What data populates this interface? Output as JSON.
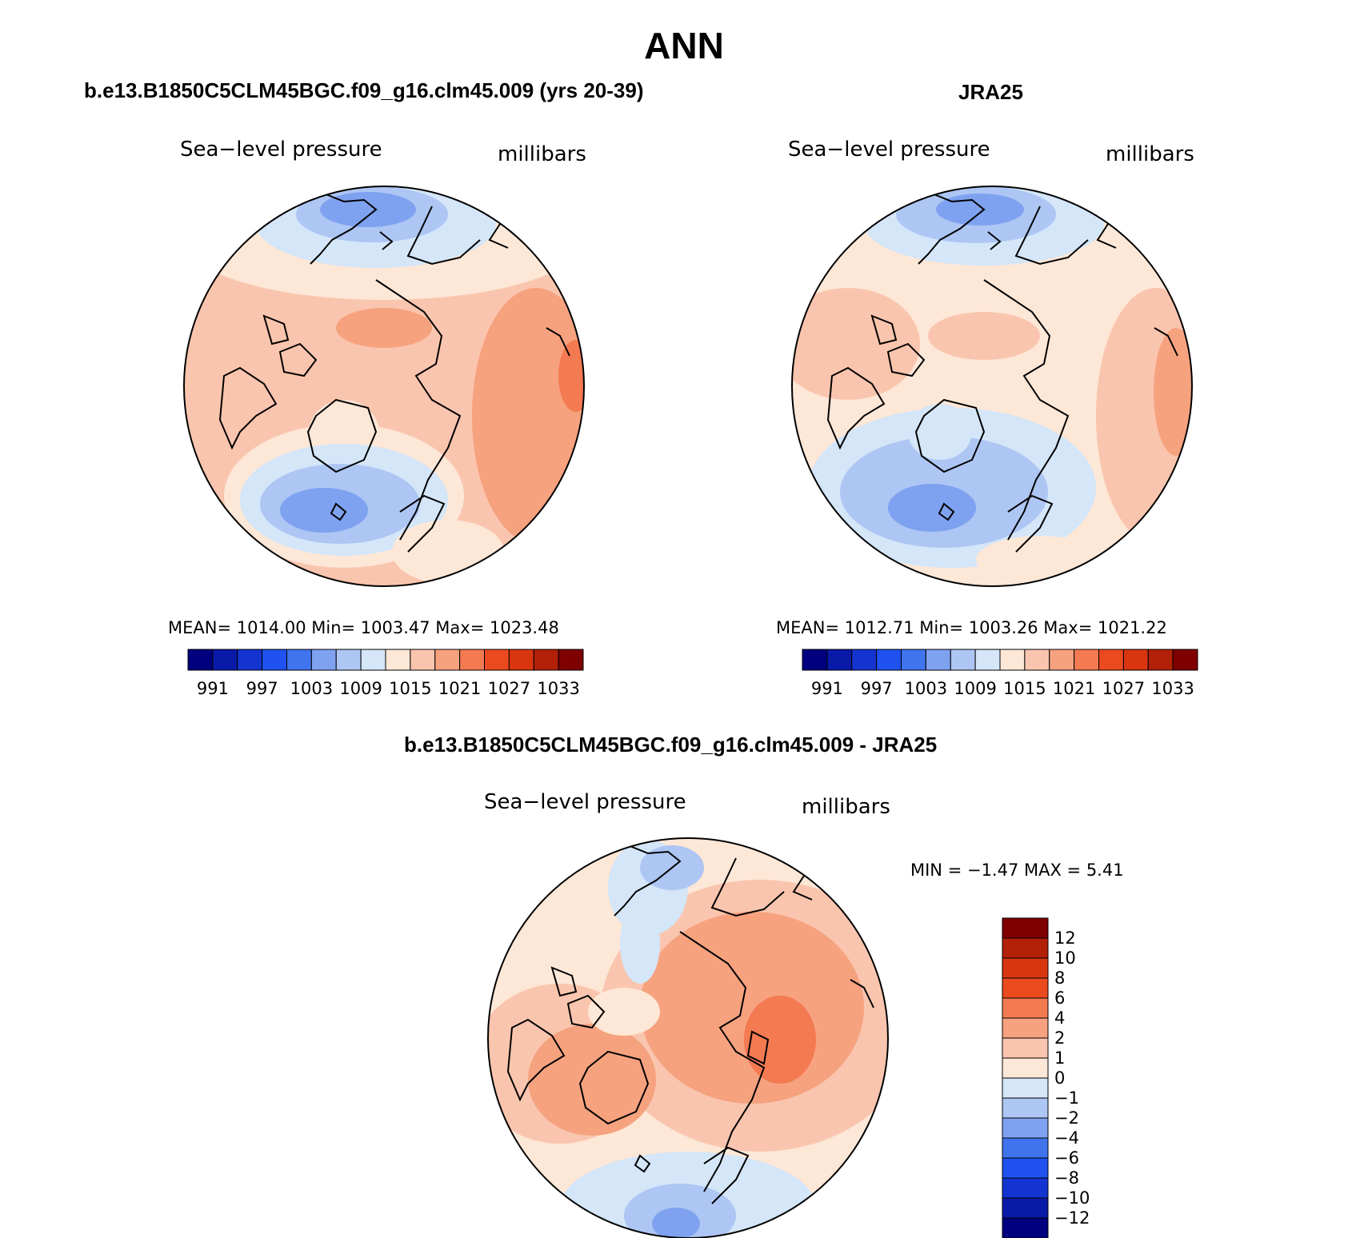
{
  "figure": {
    "title": "ANN",
    "panel_left_title": "b.e13.B1850C5CLM45BGC.f09_g16.clm45.009 (yrs 20-39)",
    "panel_right_title": "JRA25",
    "panel_diff_title": "b.e13.B1850C5CLM45BGC.f09_g16.clm45.009 - JRA25"
  },
  "colors": {
    "pressure_scale": [
      "#00007f",
      "#0a1aa8",
      "#1434d1",
      "#1f52f0",
      "#3f74ee",
      "#7fa2f0",
      "#adc6f4",
      "#d4e6f8",
      "#fde7d7",
      "#fac5ae",
      "#f6a27f",
      "#f47a52",
      "#eb4a1f",
      "#d9360f",
      "#b32008",
      "#7f0000"
    ],
    "diff_scale": [
      "#00007f",
      "#0a1aa8",
      "#1434d1",
      "#1f52f0",
      "#3f74ee",
      "#7fa2f0",
      "#adc6f4",
      "#d4e6f8",
      "#fde7d7",
      "#fac5ae",
      "#f6a27f",
      "#f47a52",
      "#eb4a1f",
      "#d9360f",
      "#b32008",
      "#7f0000"
    ]
  },
  "chart_data": [
    {
      "type": "heatmap",
      "projection": "north-polar-stereographic",
      "title": "b.e13.B1850C5CLM45BGC.f09_g16.clm45.009 (yrs 20-39)",
      "variable": "Sea−level pressure",
      "units": "millibars",
      "stats_text": "MEAN=  1014.00   Min=  1003.47   Max=  1023.48",
      "mean": 1014.0,
      "min": 1003.47,
      "max": 1023.48,
      "colorbar_levels": [
        991,
        994,
        997,
        1000,
        1003,
        1006,
        1009,
        1012,
        1015,
        1018,
        1021,
        1024,
        1027,
        1030,
        1033
      ],
      "colorbar_labels": [
        "991",
        "997",
        "1003",
        "1009",
        "1015",
        "1021",
        "1027",
        "1033"
      ]
    },
    {
      "type": "heatmap",
      "projection": "north-polar-stereographic",
      "title": "JRA25",
      "variable": "Sea−level pressure",
      "units": "millibars",
      "stats_text": "MEAN=  1012.71   Min=  1003.26   Max=  1021.22",
      "mean": 1012.71,
      "min": 1003.26,
      "max": 1021.22,
      "colorbar_levels": [
        991,
        994,
        997,
        1000,
        1003,
        1006,
        1009,
        1012,
        1015,
        1018,
        1021,
        1024,
        1027,
        1030,
        1033
      ],
      "colorbar_labels": [
        "991",
        "997",
        "1003",
        "1009",
        "1015",
        "1021",
        "1027",
        "1033"
      ]
    },
    {
      "type": "heatmap",
      "projection": "north-polar-stereographic",
      "title": "b.e13.B1850C5CLM45BGC.f09_g16.clm45.009 - JRA25",
      "variable": "Sea−level pressure",
      "units": "millibars",
      "stats_text": "MIN =   −1.47  MAX =    5.41",
      "min": -1.47,
      "max": 5.41,
      "colorbar_levels": [
        -12,
        -10,
        -8,
        -6,
        -4,
        -2,
        -1,
        0,
        1,
        2,
        4,
        6,
        8,
        10,
        12
      ],
      "colorbar_labels": [
        "12",
        "10",
        "8",
        "6",
        "4",
        "2",
        "1",
        "0",
        "−1",
        "−2",
        "−4",
        "−6",
        "−8",
        "−10",
        "−12"
      ]
    }
  ]
}
